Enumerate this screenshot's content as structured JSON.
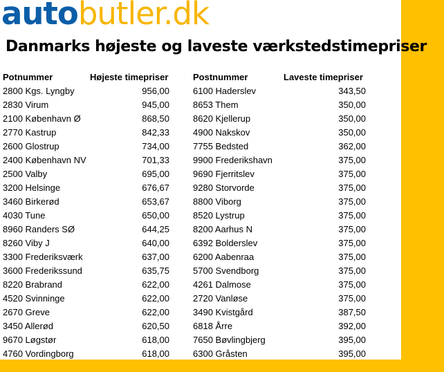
{
  "logo": {
    "part1": "auto",
    "part2": "butler.dk"
  },
  "title": "Danmarks højeste og laveste værkstedstimepriser",
  "headers": {
    "left_postnr": "Potnummer",
    "left_price": "Højeste timepriser",
    "right_postnr": "Postnummer",
    "right_price": "Laveste timepriser"
  },
  "rows": [
    {
      "hi_place": "2800 Kgs. Lyngby",
      "hi_price": "956,00",
      "lo_place": "6100 Haderslev",
      "lo_price": "343,50"
    },
    {
      "hi_place": "2830 Virum",
      "hi_price": "945,00",
      "lo_place": "8653 Them",
      "lo_price": "350,00"
    },
    {
      "hi_place": "2100 København Ø",
      "hi_price": "868,50",
      "lo_place": "8620 Kjellerup",
      "lo_price": "350,00"
    },
    {
      "hi_place": "2770 Kastrup",
      "hi_price": "842,33",
      "lo_place": "4900 Nakskov",
      "lo_price": "350,00"
    },
    {
      "hi_place": "2600 Glostrup",
      "hi_price": "734,00",
      "lo_place": "7755 Bedsted",
      "lo_price": "362,00"
    },
    {
      "hi_place": "2400 København NV",
      "hi_price": "701,33",
      "lo_place": "9900 Frederikshavn",
      "lo_price": "375,00"
    },
    {
      "hi_place": "2500 Valby",
      "hi_price": "695,00",
      "lo_place": "9690 Fjerritslev",
      "lo_price": "375,00"
    },
    {
      "hi_place": "3200 Helsinge",
      "hi_price": "676,67",
      "lo_place": "9280 Storvorde",
      "lo_price": "375,00"
    },
    {
      "hi_place": "3460 Birkerød",
      "hi_price": "653,67",
      "lo_place": "8800 Viborg",
      "lo_price": "375,00"
    },
    {
      "hi_place": "4030 Tune",
      "hi_price": "650,00",
      "lo_place": "8520 Lystrup",
      "lo_price": "375,00"
    },
    {
      "hi_place": "8960 Randers SØ",
      "hi_price": "644,25",
      "lo_place": "8200 Aarhus N",
      "lo_price": "375,00"
    },
    {
      "hi_place": "8260 Viby J",
      "hi_price": "640,00",
      "lo_place": "6392 Bolderslev",
      "lo_price": "375,00"
    },
    {
      "hi_place": "3300 Frederiksværk",
      "hi_price": "637,00",
      "lo_place": "6200 Aabenraa",
      "lo_price": "375,00"
    },
    {
      "hi_place": "3600 Frederikssund",
      "hi_price": "635,75",
      "lo_place": "5700 Svendborg",
      "lo_price": "375,00"
    },
    {
      "hi_place": "8220 Brabrand",
      "hi_price": "622,00",
      "lo_place": "4261 Dalmose",
      "lo_price": "375,00"
    },
    {
      "hi_place": "4520 Svinninge",
      "hi_price": "622,00",
      "lo_place": "2720 Vanløse",
      "lo_price": "375,00"
    },
    {
      "hi_place": "2670 Greve",
      "hi_price": "622,00",
      "lo_place": "3490 Kvistgård",
      "lo_price": "387,50"
    },
    {
      "hi_place": "3450 Allerød",
      "hi_price": "620,50",
      "lo_place": "6818 Årre",
      "lo_price": "392,00"
    },
    {
      "hi_place": "9670 Løgstør",
      "hi_price": "618,00",
      "lo_place": "7650 Bøvlingbjerg",
      "lo_price": "395,00"
    },
    {
      "hi_place": "4760 Vordingborg",
      "hi_price": "618,00",
      "lo_place": "6300 Gråsten",
      "lo_price": "395,00"
    }
  ]
}
